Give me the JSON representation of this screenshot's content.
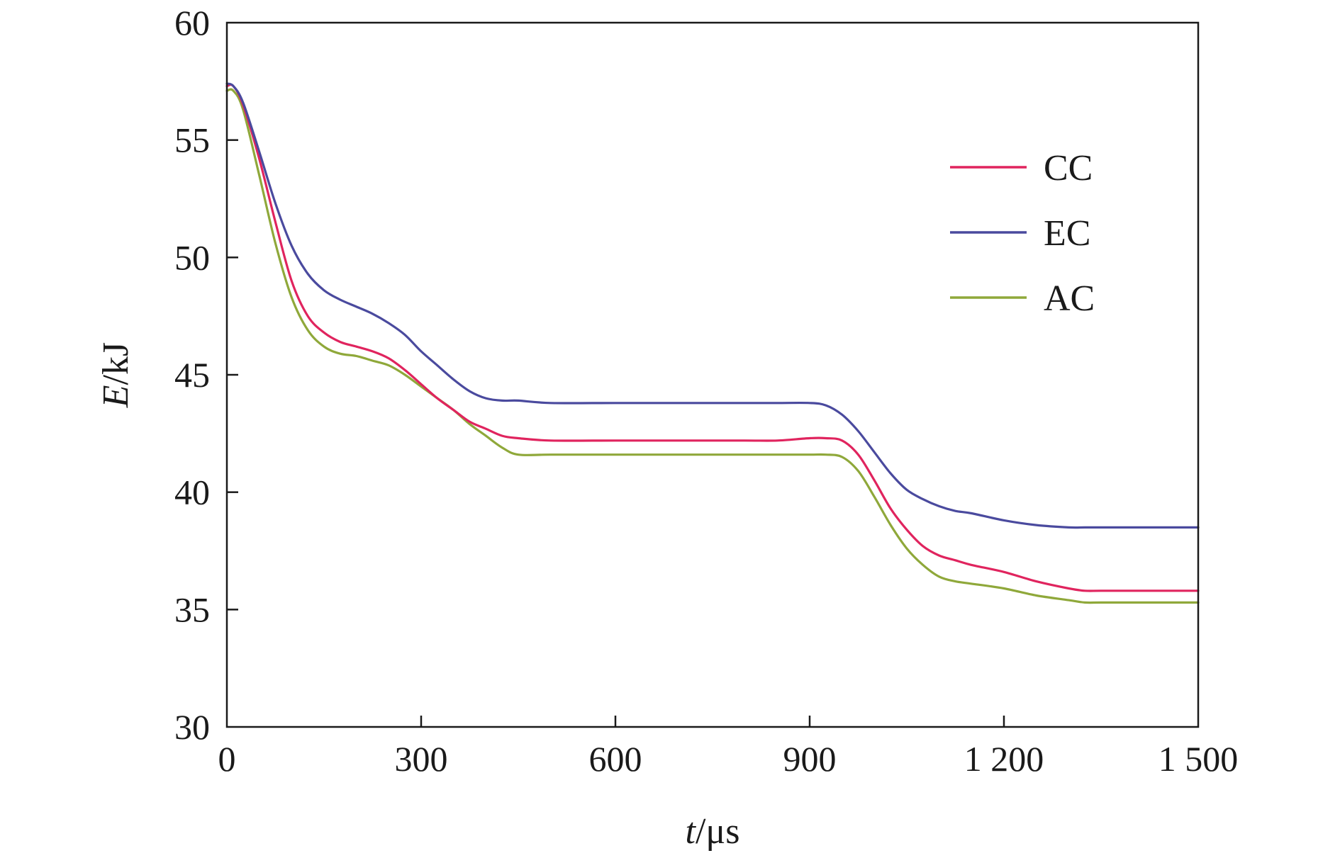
{
  "chart_data": {
    "type": "line",
    "title": "",
    "xlabel": "t/μs",
    "ylabel": "E/kJ",
    "xlabel_parts": {
      "var": "t",
      "unit": "/μs"
    },
    "ylabel_parts": {
      "var": "E",
      "unit": "/kJ"
    },
    "xlim": [
      0,
      1500
    ],
    "ylim": [
      30,
      60
    ],
    "x_ticks": [
      0,
      300,
      600,
      900,
      1200,
      1500
    ],
    "x_tick_labels": [
      "0",
      "300",
      "600",
      "900",
      "1 200",
      "1 500"
    ],
    "y_ticks": [
      30,
      35,
      40,
      45,
      50,
      55,
      60
    ],
    "y_tick_labels": [
      "30",
      "35",
      "40",
      "45",
      "50",
      "55",
      "60"
    ],
    "grid": false,
    "legend_position": "top-right",
    "series": [
      {
        "name": "CC",
        "color": "#e0245e",
        "x": [
          0,
          10,
          25,
          50,
          75,
          100,
          125,
          150,
          175,
          200,
          225,
          250,
          275,
          300,
          325,
          350,
          375,
          400,
          425,
          450,
          500,
          600,
          700,
          800,
          850,
          900,
          925,
          950,
          975,
          1000,
          1025,
          1050,
          1075,
          1100,
          1125,
          1150,
          1200,
          1250,
          1300,
          1325,
          1350,
          1400,
          1450,
          1500
        ],
        "y": [
          57.3,
          57.3,
          56.5,
          54.2,
          51.5,
          49.0,
          47.5,
          46.8,
          46.4,
          46.2,
          46.0,
          45.7,
          45.2,
          44.6,
          44.0,
          43.5,
          43.0,
          42.7,
          42.4,
          42.3,
          42.2,
          42.2,
          42.2,
          42.2,
          42.2,
          42.3,
          42.3,
          42.2,
          41.6,
          40.5,
          39.3,
          38.4,
          37.7,
          37.3,
          37.1,
          36.9,
          36.6,
          36.2,
          35.9,
          35.8,
          35.8,
          35.8,
          35.8,
          35.8
        ]
      },
      {
        "name": "EC",
        "color": "#4a4a9e",
        "x": [
          0,
          10,
          25,
          50,
          75,
          100,
          125,
          150,
          175,
          200,
          225,
          250,
          275,
          300,
          325,
          350,
          375,
          400,
          425,
          450,
          500,
          600,
          700,
          800,
          850,
          900,
          925,
          950,
          975,
          1000,
          1025,
          1050,
          1075,
          1100,
          1125,
          1150,
          1200,
          1250,
          1300,
          1325,
          1350,
          1400,
          1450,
          1500
        ],
        "y": [
          57.4,
          57.3,
          56.6,
          54.5,
          52.3,
          50.5,
          49.3,
          48.6,
          48.2,
          47.9,
          47.6,
          47.2,
          46.7,
          46.0,
          45.4,
          44.8,
          44.3,
          44.0,
          43.9,
          43.9,
          43.8,
          43.8,
          43.8,
          43.8,
          43.8,
          43.8,
          43.7,
          43.3,
          42.6,
          41.7,
          40.8,
          40.1,
          39.7,
          39.4,
          39.2,
          39.1,
          38.8,
          38.6,
          38.5,
          38.5,
          38.5,
          38.5,
          38.5,
          38.5
        ]
      },
      {
        "name": "AC",
        "color": "#8fa83a",
        "x": [
          0,
          10,
          25,
          50,
          75,
          100,
          125,
          150,
          175,
          200,
          225,
          250,
          275,
          300,
          325,
          350,
          375,
          400,
          425,
          450,
          500,
          600,
          700,
          800,
          850,
          900,
          925,
          950,
          975,
          1000,
          1025,
          1050,
          1075,
          1100,
          1125,
          1150,
          1200,
          1250,
          1300,
          1325,
          1350,
          1400,
          1450,
          1500
        ],
        "y": [
          57.1,
          57.1,
          56.3,
          53.5,
          50.6,
          48.3,
          46.9,
          46.2,
          45.9,
          45.8,
          45.6,
          45.4,
          45.0,
          44.5,
          44.0,
          43.5,
          42.9,
          42.4,
          41.9,
          41.6,
          41.6,
          41.6,
          41.6,
          41.6,
          41.6,
          41.6,
          41.6,
          41.5,
          40.9,
          39.8,
          38.6,
          37.6,
          36.9,
          36.4,
          36.2,
          36.1,
          35.9,
          35.6,
          35.4,
          35.3,
          35.3,
          35.3,
          35.3,
          35.3
        ]
      }
    ]
  }
}
